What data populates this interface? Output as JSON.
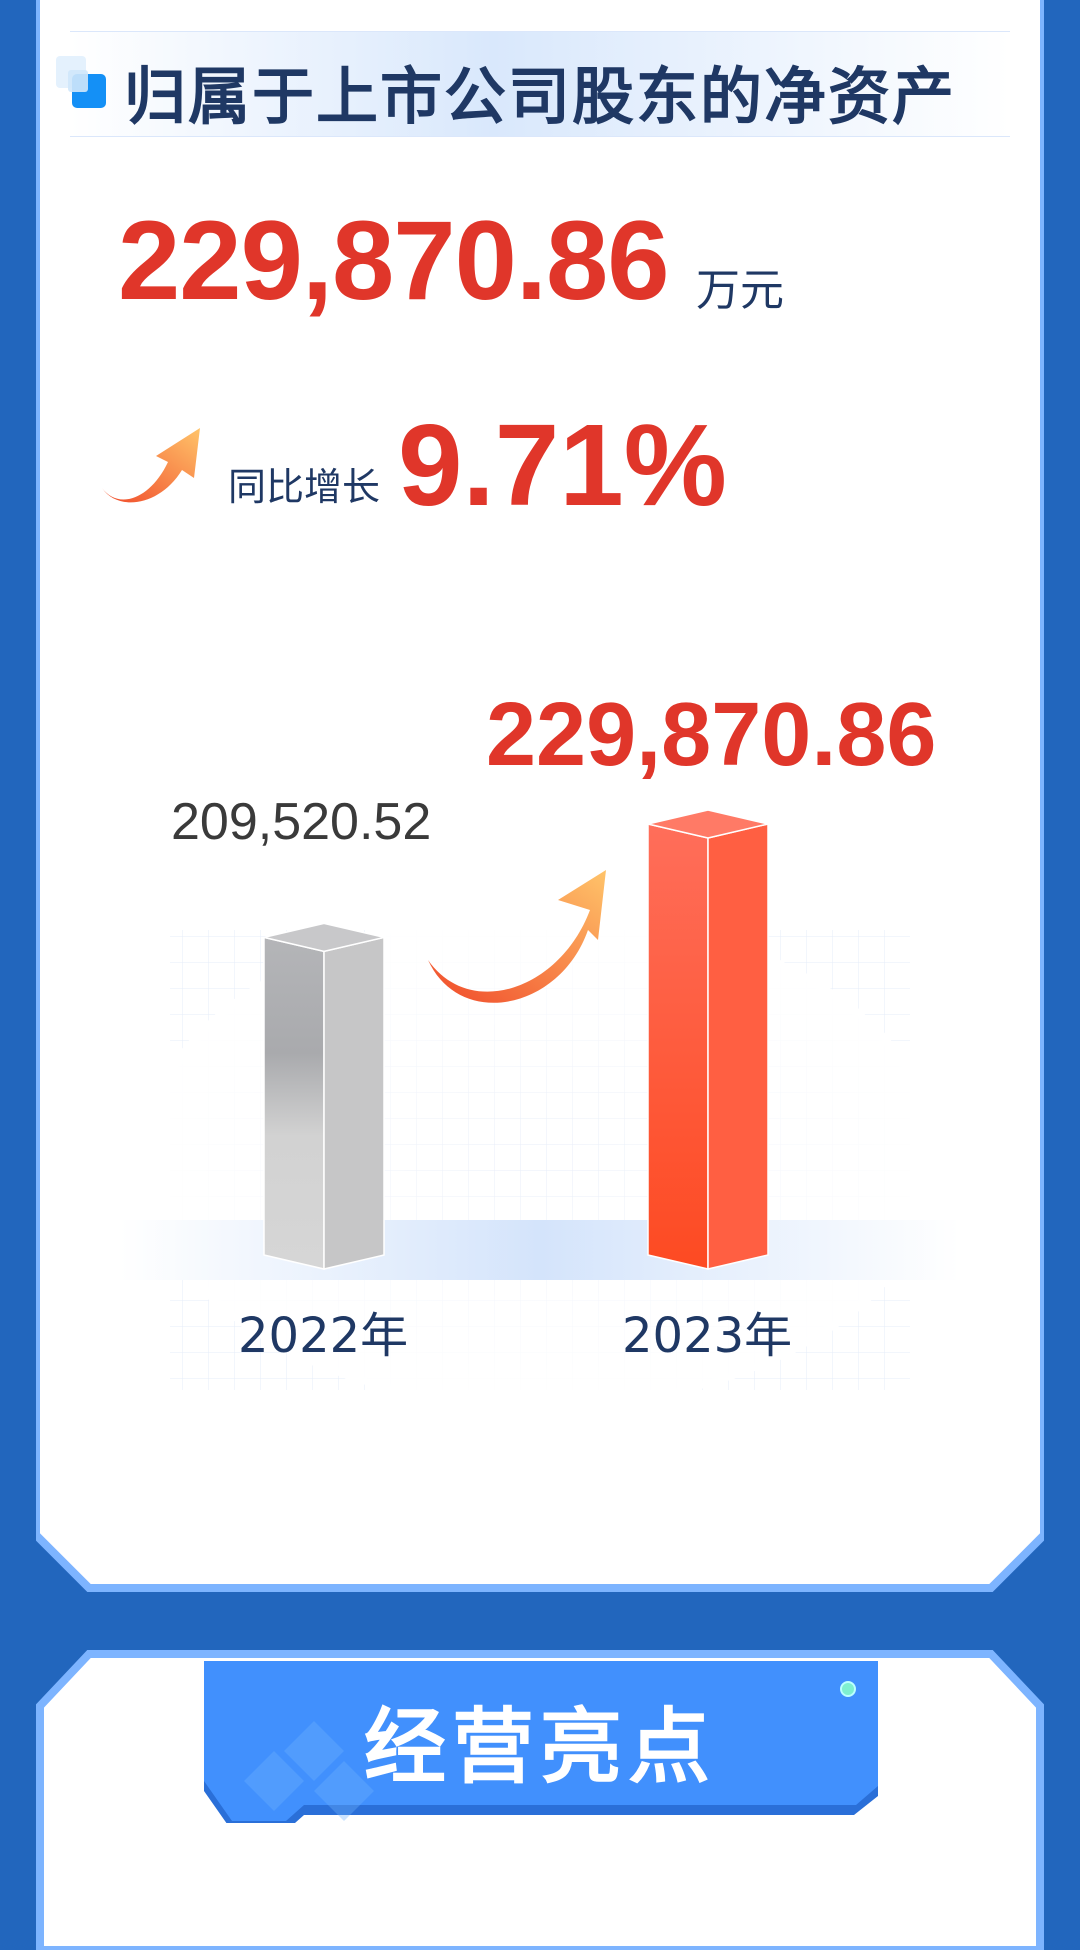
{
  "section1": {
    "title": "归属于上市公司股东的净资产",
    "value": "229,870.86",
    "unit": "万元",
    "yoy_label": "同比增长",
    "yoy_value": "9.71%"
  },
  "chart_data": {
    "type": "bar",
    "categories": [
      "2022年",
      "2023年"
    ],
    "values": [
      209520.52,
      229870.86
    ],
    "value_labels": [
      "209,520.52",
      "229,870.86"
    ],
    "colors": [
      "#bcbcbc",
      "#f4502f"
    ]
  },
  "section2": {
    "title": "经营亮点"
  },
  "colors": {
    "background": "#2266bd",
    "accent_red": "#e0362a",
    "title_navy": "#1f3864",
    "banner_blue": "#4190fd"
  }
}
